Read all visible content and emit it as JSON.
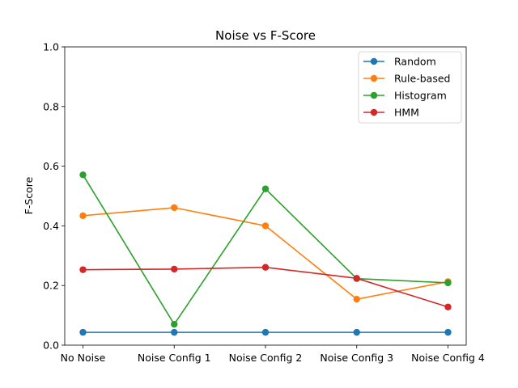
{
  "chart_data": {
    "type": "line",
    "title": "Noise vs F-Score",
    "xlabel": "",
    "ylabel": "F-Score",
    "categories": [
      "No Noise",
      "Noise Config 1",
      "Noise Config 2",
      "Noise Config 3",
      "Noise Config 4"
    ],
    "ylim": [
      0,
      1.0
    ],
    "yticks": [
      "0.0",
      "0.2",
      "0.4",
      "0.6",
      "0.8",
      "1.0"
    ],
    "grid": false,
    "legend_position": "top-right",
    "series": [
      {
        "name": "Random",
        "color": "#1f77b4",
        "values": [
          0.043,
          0.043,
          0.043,
          0.043,
          0.043
        ]
      },
      {
        "name": "Rule-based",
        "color": "#ff7f0e",
        "values": [
          0.434,
          0.461,
          0.4,
          0.154,
          0.213
        ]
      },
      {
        "name": "Histogram",
        "color": "#2ca02c",
        "values": [
          0.571,
          0.07,
          0.524,
          0.223,
          0.209
        ]
      },
      {
        "name": "HMM",
        "color": "#d62728",
        "values": [
          0.253,
          0.255,
          0.261,
          0.224,
          0.128
        ]
      }
    ]
  }
}
